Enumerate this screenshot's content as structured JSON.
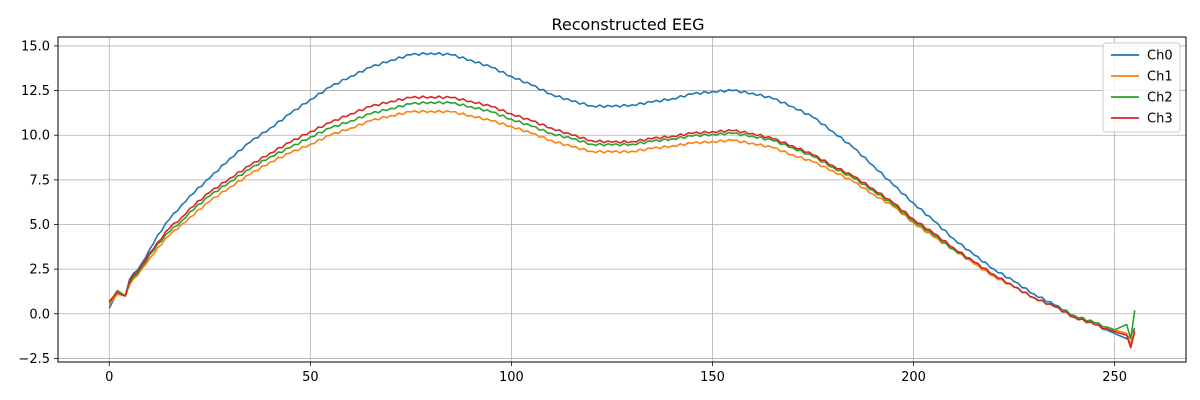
{
  "chart_data": {
    "type": "line",
    "title": "Reconstructed EEG",
    "xlabel": "",
    "ylabel": "",
    "xlim": [
      -12.75,
      267.75
    ],
    "ylim": [
      -2.7,
      15.5
    ],
    "xticks": [
      0,
      50,
      100,
      150,
      200,
      250
    ],
    "xtick_labels": [
      "0",
      "50",
      "100",
      "150",
      "200",
      "250"
    ],
    "yticks": [
      -2.5,
      0.0,
      2.5,
      5.0,
      7.5,
      10.0,
      12.5,
      15.0
    ],
    "ytick_labels": [
      "−2.5",
      "0.0",
      "2.5",
      "5.0",
      "7.5",
      "10.0",
      "12.5",
      "15.0"
    ],
    "grid": true,
    "legend_position": "top-right",
    "series": [
      {
        "name": "Ch0",
        "color": "#1f77b4",
        "points": [
          [
            0,
            0.3
          ],
          [
            2,
            1.2
          ],
          [
            4,
            1.0
          ],
          [
            5,
            1.9
          ],
          [
            8,
            2.8
          ],
          [
            10,
            3.6
          ],
          [
            12,
            4.4
          ],
          [
            15,
            5.3
          ],
          [
            18,
            6.1
          ],
          [
            20,
            6.6
          ],
          [
            25,
            7.6
          ],
          [
            30,
            8.7
          ],
          [
            35,
            9.6
          ],
          [
            40,
            10.4
          ],
          [
            45,
            11.2
          ],
          [
            50,
            12.0
          ],
          [
            55,
            12.7
          ],
          [
            60,
            13.3
          ],
          [
            65,
            13.8
          ],
          [
            70,
            14.2
          ],
          [
            75,
            14.5
          ],
          [
            80,
            14.6
          ],
          [
            85,
            14.5
          ],
          [
            90,
            14.2
          ],
          [
            95,
            13.8
          ],
          [
            100,
            13.3
          ],
          [
            105,
            12.8
          ],
          [
            110,
            12.3
          ],
          [
            115,
            11.9
          ],
          [
            120,
            11.65
          ],
          [
            125,
            11.6
          ],
          [
            130,
            11.7
          ],
          [
            135,
            11.85
          ],
          [
            140,
            12.05
          ],
          [
            145,
            12.3
          ],
          [
            150,
            12.45
          ],
          [
            155,
            12.5
          ],
          [
            160,
            12.35
          ],
          [
            165,
            12.05
          ],
          [
            170,
            11.6
          ],
          [
            175,
            11.0
          ],
          [
            180,
            10.2
          ],
          [
            185,
            9.3
          ],
          [
            190,
            8.3
          ],
          [
            195,
            7.2
          ],
          [
            200,
            6.2
          ],
          [
            205,
            5.2
          ],
          [
            210,
            4.2
          ],
          [
            215,
            3.3
          ],
          [
            220,
            2.5
          ],
          [
            225,
            1.8
          ],
          [
            230,
            1.1
          ],
          [
            235,
            0.5
          ],
          [
            240,
            -0.1
          ],
          [
            245,
            -0.6
          ],
          [
            250,
            -1.1
          ],
          [
            253,
            -1.4
          ],
          [
            254,
            -1.2
          ],
          [
            255,
            -0.8
          ]
        ]
      },
      {
        "name": "Ch1",
        "color": "#ff7f0e",
        "points": [
          [
            0,
            0.5
          ],
          [
            2,
            1.1
          ],
          [
            4,
            1.0
          ],
          [
            5,
            1.6
          ],
          [
            8,
            2.5
          ],
          [
            10,
            3.1
          ],
          [
            12,
            3.7
          ],
          [
            15,
            4.4
          ],
          [
            18,
            5.0
          ],
          [
            20,
            5.4
          ],
          [
            25,
            6.3
          ],
          [
            30,
            7.1
          ],
          [
            35,
            7.8
          ],
          [
            40,
            8.5
          ],
          [
            45,
            9.0
          ],
          [
            50,
            9.5
          ],
          [
            55,
            10.0
          ],
          [
            60,
            10.4
          ],
          [
            65,
            10.8
          ],
          [
            70,
            11.1
          ],
          [
            75,
            11.3
          ],
          [
            80,
            11.35
          ],
          [
            85,
            11.3
          ],
          [
            90,
            11.1
          ],
          [
            95,
            10.8
          ],
          [
            100,
            10.5
          ],
          [
            105,
            10.1
          ],
          [
            110,
            9.7
          ],
          [
            115,
            9.35
          ],
          [
            120,
            9.1
          ],
          [
            125,
            9.05
          ],
          [
            130,
            9.1
          ],
          [
            135,
            9.25
          ],
          [
            140,
            9.4
          ],
          [
            145,
            9.55
          ],
          [
            150,
            9.65
          ],
          [
            155,
            9.7
          ],
          [
            160,
            9.55
          ],
          [
            165,
            9.3
          ],
          [
            170,
            8.9
          ],
          [
            175,
            8.5
          ],
          [
            180,
            8.0
          ],
          [
            185,
            7.4
          ],
          [
            190,
            6.7
          ],
          [
            195,
            6.0
          ],
          [
            200,
            5.1
          ],
          [
            205,
            4.3
          ],
          [
            210,
            3.6
          ],
          [
            215,
            2.8
          ],
          [
            220,
            2.1
          ],
          [
            225,
            1.5
          ],
          [
            230,
            0.9
          ],
          [
            235,
            0.4
          ],
          [
            240,
            -0.1
          ],
          [
            245,
            -0.5
          ],
          [
            250,
            -0.9
          ],
          [
            253,
            -1.1
          ],
          [
            254,
            -1.7
          ],
          [
            255,
            -0.9
          ]
        ]
      },
      {
        "name": "Ch2",
        "color": "#2ca02c",
        "points": [
          [
            0,
            0.6
          ],
          [
            2,
            1.3
          ],
          [
            4,
            1.0
          ],
          [
            5,
            1.7
          ],
          [
            8,
            2.6
          ],
          [
            10,
            3.3
          ],
          [
            12,
            3.9
          ],
          [
            15,
            4.6
          ],
          [
            18,
            5.2
          ],
          [
            20,
            5.7
          ],
          [
            25,
            6.6
          ],
          [
            30,
            7.4
          ],
          [
            35,
            8.1
          ],
          [
            40,
            8.8
          ],
          [
            45,
            9.3
          ],
          [
            50,
            9.9
          ],
          [
            55,
            10.4
          ],
          [
            60,
            10.8
          ],
          [
            65,
            11.2
          ],
          [
            70,
            11.5
          ],
          [
            75,
            11.75
          ],
          [
            80,
            11.85
          ],
          [
            85,
            11.8
          ],
          [
            90,
            11.6
          ],
          [
            95,
            11.3
          ],
          [
            100,
            10.9
          ],
          [
            105,
            10.5
          ],
          [
            110,
            10.1
          ],
          [
            115,
            9.8
          ],
          [
            120,
            9.5
          ],
          [
            125,
            9.45
          ],
          [
            130,
            9.5
          ],
          [
            135,
            9.65
          ],
          [
            140,
            9.8
          ],
          [
            145,
            9.95
          ],
          [
            150,
            10.05
          ],
          [
            155,
            10.1
          ],
          [
            160,
            9.95
          ],
          [
            165,
            9.7
          ],
          [
            170,
            9.3
          ],
          [
            175,
            8.8
          ],
          [
            180,
            8.2
          ],
          [
            185,
            7.6
          ],
          [
            190,
            6.9
          ],
          [
            195,
            6.1
          ],
          [
            200,
            5.2
          ],
          [
            205,
            4.4
          ],
          [
            210,
            3.6
          ],
          [
            215,
            2.9
          ],
          [
            220,
            2.2
          ],
          [
            225,
            1.5
          ],
          [
            230,
            0.9
          ],
          [
            235,
            0.4
          ],
          [
            240,
            -0.1
          ],
          [
            245,
            -0.5
          ],
          [
            250,
            -0.9
          ],
          [
            253,
            -0.6
          ],
          [
            254,
            -1.4
          ],
          [
            255,
            0.2
          ]
        ]
      },
      {
        "name": "Ch3",
        "color": "#d62728",
        "points": [
          [
            0,
            0.7
          ],
          [
            2,
            1.2
          ],
          [
            4,
            1.0
          ],
          [
            5,
            1.8
          ],
          [
            8,
            2.7
          ],
          [
            10,
            3.4
          ],
          [
            12,
            4.0
          ],
          [
            15,
            4.8
          ],
          [
            18,
            5.4
          ],
          [
            20,
            5.9
          ],
          [
            25,
            6.8
          ],
          [
            30,
            7.6
          ],
          [
            35,
            8.3
          ],
          [
            40,
            9.0
          ],
          [
            45,
            9.6
          ],
          [
            50,
            10.2
          ],
          [
            55,
            10.7
          ],
          [
            60,
            11.2
          ],
          [
            65,
            11.6
          ],
          [
            70,
            11.9
          ],
          [
            75,
            12.1
          ],
          [
            80,
            12.15
          ],
          [
            85,
            12.1
          ],
          [
            90,
            11.9
          ],
          [
            95,
            11.6
          ],
          [
            100,
            11.2
          ],
          [
            105,
            10.8
          ],
          [
            110,
            10.4
          ],
          [
            115,
            10.0
          ],
          [
            120,
            9.7
          ],
          [
            125,
            9.6
          ],
          [
            130,
            9.65
          ],
          [
            135,
            9.8
          ],
          [
            140,
            9.95
          ],
          [
            145,
            10.1
          ],
          [
            150,
            10.2
          ],
          [
            155,
            10.25
          ],
          [
            160,
            10.1
          ],
          [
            165,
            9.8
          ],
          [
            170,
            9.4
          ],
          [
            175,
            8.9
          ],
          [
            180,
            8.3
          ],
          [
            185,
            7.7
          ],
          [
            190,
            7.0
          ],
          [
            195,
            6.2
          ],
          [
            200,
            5.3
          ],
          [
            205,
            4.5
          ],
          [
            210,
            3.7
          ],
          [
            215,
            2.9
          ],
          [
            220,
            2.2
          ],
          [
            225,
            1.5
          ],
          [
            230,
            0.9
          ],
          [
            235,
            0.4
          ],
          [
            240,
            -0.2
          ],
          [
            245,
            -0.6
          ],
          [
            250,
            -1.0
          ],
          [
            253,
            -1.2
          ],
          [
            254,
            -1.9
          ],
          [
            255,
            -1.0
          ]
        ]
      }
    ]
  }
}
